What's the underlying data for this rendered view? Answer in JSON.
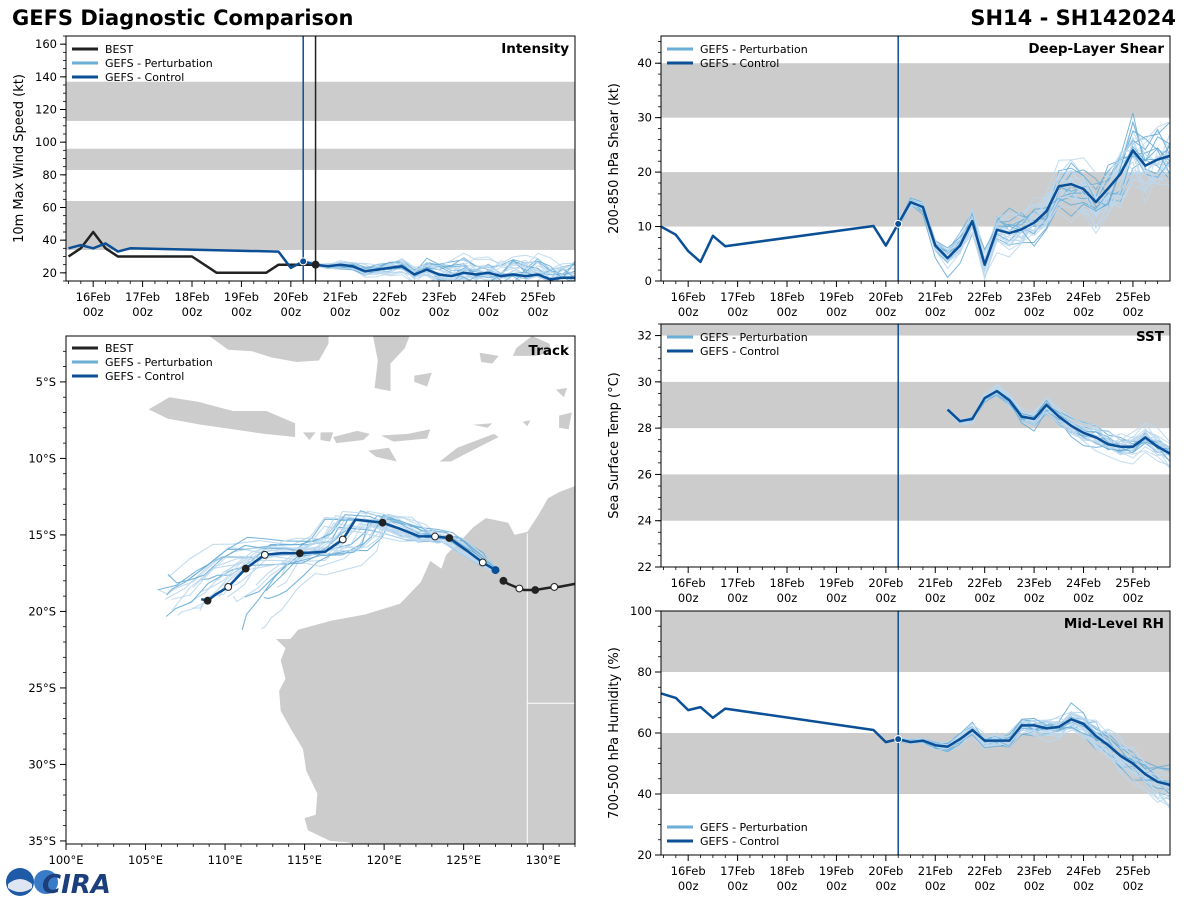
{
  "header": {
    "title": "GEFS Diagnostic Comparison",
    "storm": "SH14 - SH142024"
  },
  "legend_labels": {
    "best": "BEST",
    "perturbation": "GEFS - Perturbation",
    "control": "GEFS - Control"
  },
  "colors": {
    "best": "#222222",
    "control": "#0b4f96",
    "perturbation": "#6baed6",
    "perturbation_light": "#bcd8ee",
    "band": "#cccccc",
    "land": "#cccccc"
  },
  "logos": {
    "cira": "CIRA"
  },
  "time_axis": {
    "ticks": [
      "16Feb\n00z",
      "17Feb\n00z",
      "18Feb\n00z",
      "19Feb\n00z",
      "20Feb\n00z",
      "21Feb\n00z",
      "22Feb\n00z",
      "23Feb\n00z",
      "24Feb\n00z",
      "25Feb\n00z"
    ],
    "range": [
      15.45,
      25.75
    ],
    "init_time": 20.25
  },
  "chart_data": [
    {
      "id": "intensity",
      "type": "line",
      "title": "Intensity",
      "ylabel": "10m Max Wind Speed (kt)",
      "ylim": [
        15,
        165
      ],
      "yticks": [
        20,
        40,
        60,
        80,
        100,
        120,
        140,
        160
      ],
      "bands": [
        [
          34,
          64
        ],
        [
          83,
          96
        ],
        [
          113,
          137
        ]
      ],
      "vlines": [
        {
          "t": 20.25,
          "series": "control"
        },
        {
          "t": 20.5,
          "series": "best"
        }
      ],
      "series": [
        {
          "name": "BEST",
          "x": [
            15.5,
            15.75,
            16,
            16.25,
            16.5,
            17.5,
            18,
            18.5,
            19.5,
            19.75,
            20,
            20.25,
            20.5
          ],
          "y": [
            30,
            35,
            45,
            35,
            30,
            30,
            30,
            20,
            20,
            25,
            25,
            25,
            25
          ]
        },
        {
          "name": "GEFS - Control",
          "x": [
            15.5,
            15.75,
            16,
            16.25,
            16.5,
            16.75,
            19.75,
            20,
            20.25,
            20.5,
            20.75,
            21,
            21.25,
            21.5,
            21.75,
            22,
            22.25,
            22.5,
            22.75,
            23,
            23.25,
            23.5,
            23.75,
            24,
            24.25,
            24.5,
            24.75,
            25,
            25.25,
            25.5,
            25.75
          ],
          "y": [
            35,
            37,
            35,
            38,
            33,
            35,
            33,
            23,
            27,
            25,
            24,
            25,
            24,
            21,
            22,
            23,
            24,
            19,
            22,
            19,
            18,
            20,
            19,
            20,
            18,
            19,
            18,
            19,
            16,
            17,
            17
          ]
        }
      ]
    },
    {
      "id": "shear",
      "type": "line",
      "title": "Deep-Layer Shear",
      "ylabel": "200-850 hPa Shear (kt)",
      "ylim": [
        0,
        45
      ],
      "yticks": [
        0,
        10,
        20,
        30,
        40
      ],
      "bands": [
        [
          10,
          20
        ],
        [
          30,
          40
        ]
      ],
      "vlines": [
        {
          "t": 20.25,
          "series": "control"
        }
      ],
      "series": [
        {
          "name": "GEFS - Control",
          "x": [
            15.45,
            15.75,
            16,
            16.25,
            16.5,
            16.75,
            19.75,
            20,
            20.25,
            20.5,
            20.75,
            21,
            21.25,
            21.5,
            21.75,
            22,
            22.25,
            22.5,
            22.75,
            23,
            23.25,
            23.5,
            23.75,
            24,
            24.25,
            24.5,
            24.75,
            25,
            25.25,
            25.5,
            25.75
          ],
          "y": [
            10,
            8.5,
            5.5,
            3.5,
            8.3,
            6.4,
            10.1,
            6.5,
            10.5,
            14.5,
            13.6,
            6.5,
            4.2,
            6.5,
            11,
            3,
            9.4,
            8.8,
            9.5,
            10.7,
            12.8,
            17.4,
            17.8,
            16.9,
            14.5,
            17,
            19.7,
            24,
            21.2,
            22.3,
            23
          ]
        }
      ]
    },
    {
      "id": "sst",
      "type": "line",
      "title": "SST",
      "ylabel": "Sea Surface Temp (°C)",
      "ylim": [
        22,
        32.5
      ],
      "yticks": [
        22,
        24,
        26,
        28,
        30,
        32
      ],
      "bands": [
        [
          24,
          26
        ],
        [
          28,
          30
        ],
        [
          32,
          34
        ]
      ],
      "vlines": [
        {
          "t": 20.25,
          "series": "control"
        }
      ],
      "series": [
        {
          "name": "GEFS - Control",
          "x": [
            21.25,
            21.5,
            21.75,
            22,
            22.25,
            22.5,
            22.75,
            23,
            23.25,
            23.5,
            23.75,
            24,
            24.25,
            24.5,
            24.75,
            25,
            25.25,
            25.5,
            25.75
          ],
          "y": [
            28.8,
            28.3,
            28.4,
            29.3,
            29.6,
            29.2,
            28.5,
            28.4,
            29,
            28.5,
            28.1,
            27.8,
            27.6,
            27.3,
            27.2,
            27.2,
            27.6,
            27.2,
            26.9
          ]
        }
      ]
    },
    {
      "id": "rh",
      "type": "line",
      "title": "Mid-Level RH",
      "ylabel": "700-500 hPa Humidity (%)",
      "ylim": [
        20,
        100
      ],
      "yticks": [
        20,
        40,
        60,
        80,
        100
      ],
      "bands": [
        [
          40,
          60
        ],
        [
          80,
          100
        ]
      ],
      "vlines": [
        {
          "t": 20.25,
          "series": "control"
        }
      ],
      "series": [
        {
          "name": "GEFS - Control",
          "x": [
            15.45,
            15.75,
            16,
            16.25,
            16.5,
            16.75,
            19.75,
            20,
            20.25,
            20.5,
            20.75,
            21,
            21.25,
            21.5,
            21.75,
            22,
            22.25,
            22.5,
            22.75,
            23,
            23.25,
            23.5,
            23.75,
            24,
            24.25,
            24.5,
            24.75,
            25,
            25.25,
            25.5,
            25.75
          ],
          "y": [
            73,
            71.5,
            67.5,
            68.5,
            65,
            68,
            61,
            57,
            58,
            57,
            57.5,
            56,
            55.5,
            58,
            61,
            57.5,
            57.5,
            57.5,
            62.5,
            62.5,
            61.5,
            62,
            64.5,
            63,
            59,
            56,
            52.5,
            50,
            46.5,
            44,
            43
          ]
        }
      ]
    },
    {
      "id": "track",
      "type": "scatter",
      "title": "Track",
      "xlim": [
        100,
        132
      ],
      "ylim": [
        -35.2,
        -2
      ],
      "xticks": [
        {
          "v": 100,
          "label": "100°E"
        },
        {
          "v": 105,
          "label": "105°E"
        },
        {
          "v": 110,
          "label": "110°E"
        },
        {
          "v": 115,
          "label": "115°E"
        },
        {
          "v": 120,
          "label": "120°E"
        },
        {
          "v": 125,
          "label": "125°E"
        },
        {
          "v": 130,
          "label": "130°E"
        }
      ],
      "yticks": [
        {
          "v": -5,
          "label": "5°S"
        },
        {
          "v": -10,
          "label": "10°S"
        },
        {
          "v": -15,
          "label": "15°S"
        },
        {
          "v": -20,
          "label": "20°S"
        },
        {
          "v": -25,
          "label": "25°S"
        },
        {
          "v": -30,
          "label": "30°S"
        },
        {
          "v": -35,
          "label": "35°S"
        }
      ],
      "best_track": [
        [
          132,
          -18.2
        ],
        [
          131,
          -18.4
        ],
        [
          130.7,
          -18.4
        ],
        [
          129.5,
          -18.6
        ],
        [
          128.8,
          -18.6
        ],
        [
          128.5,
          -18.5
        ],
        [
          127.8,
          -18.2
        ],
        [
          127.5,
          -18.0
        ]
      ],
      "best_points": [
        {
          "lon": 130.7,
          "lat": -18.4,
          "open": true
        },
        {
          "lon": 129.5,
          "lat": -18.6,
          "open": false
        },
        {
          "lon": 128.5,
          "lat": -18.5,
          "open": true
        },
        {
          "lon": 127.5,
          "lat": -18.0,
          "open": false
        }
      ],
      "control_track": [
        [
          127,
          -17.3
        ],
        [
          126.2,
          -16.8
        ],
        [
          125.3,
          -16.1
        ],
        [
          124.1,
          -15.2
        ],
        [
          123.2,
          -15.1
        ],
        [
          122.2,
          -15.1
        ],
        [
          121,
          -14.6
        ],
        [
          119.9,
          -14.2
        ],
        [
          118.2,
          -14.0
        ],
        [
          117.4,
          -15.3
        ],
        [
          116.3,
          -16.1
        ],
        [
          114.7,
          -16.2
        ],
        [
          113.5,
          -16.2
        ],
        [
          112.5,
          -16.3
        ],
        [
          111.3,
          -17.2
        ],
        [
          110.2,
          -18.4
        ],
        [
          109.4,
          -18.9
        ],
        [
          108.9,
          -19.3
        ],
        [
          108.5,
          -19.2
        ]
      ],
      "control_points": [
        {
          "lon": 126.2,
          "lat": -16.8,
          "open": true
        },
        {
          "lon": 124.1,
          "lat": -15.2,
          "open": false
        },
        {
          "lon": 123.2,
          "lat": -15.1,
          "open": true
        },
        {
          "lon": 119.9,
          "lat": -14.2,
          "open": false
        },
        {
          "lon": 117.4,
          "lat": -15.3,
          "open": true
        },
        {
          "lon": 114.7,
          "lat": -16.2,
          "open": false
        },
        {
          "lon": 112.5,
          "lat": -16.3,
          "open": true
        },
        {
          "lon": 111.3,
          "lat": -17.2,
          "open": false
        },
        {
          "lon": 110.2,
          "lat": -18.4,
          "open": true
        },
        {
          "lon": 108.9,
          "lat": -19.3,
          "open": false
        }
      ],
      "control_start": {
        "lon": 127,
        "lat": -17.3
      }
    }
  ]
}
